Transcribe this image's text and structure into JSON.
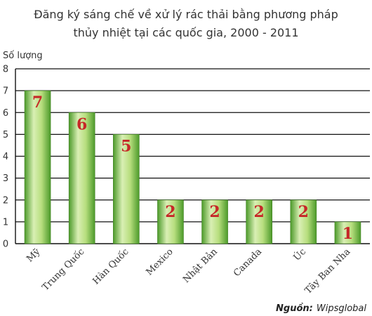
{
  "chart_data": {
    "type": "bar",
    "title_lines": [
      "Đăng ký sáng chế về xử lý rác thải bằng phương pháp",
      "thủy nhiệt tại các quốc gia, 2000 - 2011"
    ],
    "ylabel": "Số lượng",
    "xlabel": "",
    "ylim": [
      0,
      8
    ],
    "yticks": [
      0,
      1,
      2,
      3,
      4,
      5,
      6,
      7,
      8
    ],
    "categories": [
      "Mỹ",
      "Trung Quốc",
      "Hàn Quốc",
      "Mexico",
      "Nhật Bản",
      "Canada",
      "Úc",
      "Tây Ban Nha"
    ],
    "values": [
      7,
      6,
      5,
      2,
      2,
      2,
      2,
      1
    ],
    "grid": true,
    "bar_color_light": "#d6ecb0",
    "bar_color_dark": "#5aa832",
    "label_color": "#c62828"
  },
  "source": {
    "prefix": "Nguồn:",
    "name": "Wipsglobal"
  }
}
